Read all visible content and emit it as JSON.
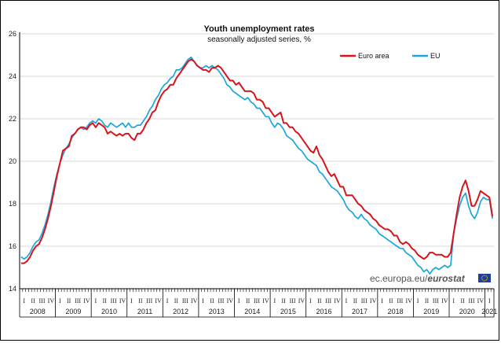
{
  "chart_data": {
    "type": "line",
    "title": "Youth unemployment rates",
    "subtitle": "seasonally adjusted series, %",
    "ylim": [
      14,
      26
    ],
    "yticks": [
      14,
      16,
      18,
      20,
      22,
      24,
      26
    ],
    "years": [
      "2008",
      "2009",
      "2010",
      "2011",
      "2012",
      "2013",
      "2014",
      "2015",
      "2016",
      "2017",
      "2018",
      "2019",
      "2020",
      "2021"
    ],
    "quarter_labels": [
      "I",
      "II",
      "III",
      "IV"
    ],
    "legend_position": "top-right",
    "source": {
      "prefix": "ec.europa.eu/",
      "brand": "eurostat"
    },
    "colors": {
      "euro_area": "#d7141c",
      "eu": "#1aa7d9",
      "grid": "#d9d9d9"
    },
    "months_per_year": 12,
    "final_year_months": 3,
    "series": [
      {
        "name": "Euro area",
        "values": [
          15.2,
          15.2,
          15.3,
          15.5,
          15.8,
          16.0,
          16.1,
          16.4,
          16.8,
          17.3,
          17.9,
          18.6,
          19.3,
          19.9,
          20.5,
          20.6,
          20.7,
          21.2,
          21.3,
          21.5,
          21.6,
          21.6,
          21.5,
          21.7,
          21.8,
          21.6,
          21.8,
          21.7,
          21.6,
          21.3,
          21.4,
          21.3,
          21.2,
          21.3,
          21.2,
          21.3,
          21.3,
          21.1,
          21.0,
          21.3,
          21.3,
          21.5,
          21.8,
          22.0,
          22.3,
          22.4,
          22.8,
          23.1,
          23.3,
          23.4,
          23.6,
          23.6,
          23.9,
          24.1,
          24.3,
          24.5,
          24.7,
          24.8,
          24.7,
          24.5,
          24.4,
          24.3,
          24.3,
          24.2,
          24.4,
          24.4,
          24.5,
          24.4,
          24.2,
          24.0,
          23.8,
          23.8,
          23.6,
          23.7,
          23.5,
          23.3,
          23.3,
          23.3,
          23.2,
          22.9,
          22.9,
          22.8,
          22.5,
          22.5,
          22.3,
          22.1,
          22.2,
          22.3,
          21.8,
          21.8,
          21.6,
          21.6,
          21.4,
          21.3,
          21.1,
          20.9,
          20.7,
          20.5,
          20.4,
          20.7,
          20.3,
          20.1,
          19.8,
          19.5,
          19.3,
          19.4,
          19.1,
          18.8,
          18.8,
          18.4,
          18.4,
          18.4,
          18.2,
          18.0,
          17.9,
          17.7,
          17.6,
          17.5,
          17.3,
          17.2,
          17.0,
          16.9,
          16.8,
          16.8,
          16.7,
          16.5,
          16.5,
          16.2,
          16.1,
          16.2,
          16.1,
          15.9,
          15.8,
          15.6,
          15.5,
          15.4,
          15.5,
          15.7,
          15.7,
          15.6,
          15.6,
          15.6,
          15.5,
          15.5,
          15.7,
          16.6,
          17.5,
          18.3,
          18.8,
          19.1,
          18.6,
          17.9,
          17.9,
          18.2,
          18.6,
          18.5,
          18.4,
          18.3,
          17.4
        ]
      },
      {
        "name": "EU",
        "values": [
          15.5,
          15.4,
          15.5,
          15.7,
          16.0,
          16.2,
          16.3,
          16.6,
          17.0,
          17.5,
          18.1,
          18.8,
          19.4,
          19.9,
          20.3,
          20.6,
          20.8,
          21.1,
          21.3,
          21.5,
          21.6,
          21.5,
          21.6,
          21.8,
          21.9,
          21.8,
          22.0,
          21.9,
          21.7,
          21.6,
          21.8,
          21.7,
          21.6,
          21.7,
          21.8,
          21.6,
          21.8,
          21.6,
          21.6,
          21.7,
          21.7,
          21.9,
          22.1,
          22.4,
          22.6,
          22.9,
          23.1,
          23.4,
          23.6,
          23.7,
          23.9,
          24.0,
          24.3,
          24.3,
          24.4,
          24.6,
          24.8,
          24.9,
          24.7,
          24.5,
          24.4,
          24.4,
          24.5,
          24.4,
          24.5,
          24.4,
          24.3,
          24.1,
          23.9,
          23.6,
          23.5,
          23.3,
          23.2,
          23.1,
          23.0,
          22.9,
          23.0,
          22.8,
          22.7,
          22.5,
          22.5,
          22.3,
          22.1,
          22.1,
          21.8,
          21.6,
          21.8,
          21.7,
          21.5,
          21.2,
          21.1,
          21.0,
          20.8,
          20.6,
          20.5,
          20.3,
          20.1,
          20.0,
          19.9,
          19.8,
          19.5,
          19.4,
          19.2,
          19.0,
          18.8,
          18.7,
          18.6,
          18.4,
          18.2,
          17.9,
          17.7,
          17.6,
          17.4,
          17.3,
          17.5,
          17.3,
          17.2,
          17.0,
          16.9,
          16.8,
          16.6,
          16.5,
          16.4,
          16.3,
          16.2,
          16.1,
          16.0,
          15.9,
          15.9,
          15.7,
          15.6,
          15.5,
          15.3,
          15.1,
          15.0,
          14.8,
          14.9,
          14.7,
          14.9,
          15.0,
          14.9,
          15.0,
          15.1,
          15.0,
          15.1,
          16.6,
          17.3,
          17.9,
          18.3,
          18.5,
          17.9,
          17.5,
          17.3,
          17.6,
          18.1,
          18.3,
          18.2,
          18.2,
          17.3
        ]
      }
    ]
  }
}
